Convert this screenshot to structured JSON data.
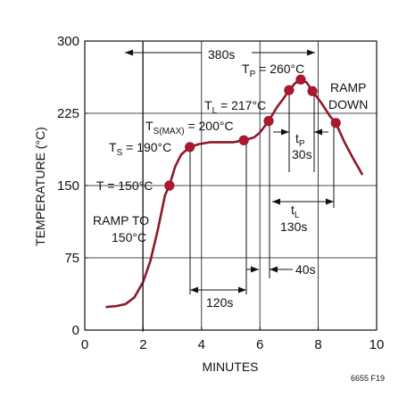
{
  "chart_data": {
    "type": "line",
    "xlabel": "MINUTES",
    "ylabel": "TEMPERATURE (°C)",
    "xlim": [
      0,
      10
    ],
    "ylim": [
      0,
      300
    ],
    "x_ticks": [
      0,
      2,
      4,
      6,
      8,
      10
    ],
    "y_ticks": [
      0,
      75,
      150,
      225,
      300
    ],
    "grid": true,
    "colors": {
      "curve": "#8b1a2b",
      "point": "#b0162f",
      "line": "#111111"
    },
    "series": [
      {
        "x": [
          0.75,
          1.1,
          1.4,
          1.7,
          2.0,
          2.25,
          2.5,
          2.75,
          2.9,
          3.1,
          3.3,
          3.6,
          3.9,
          4.3,
          4.7,
          5.1,
          5.45,
          5.8,
          6.0,
          6.3,
          6.6,
          6.8,
          7.0,
          7.2,
          7.4,
          7.6,
          7.8,
          8.1,
          8.4,
          8.6,
          8.9,
          9.2,
          9.5
        ],
        "y": [
          24,
          25,
          27,
          34,
          50,
          72,
          104,
          140,
          150,
          170,
          182,
          190,
          193,
          195,
          195,
          195,
          197,
          200,
          205,
          217,
          232,
          240,
          249,
          256,
          260,
          257,
          248,
          236,
          222,
          215,
          195,
          178,
          162
        ]
      }
    ],
    "points": [
      {
        "x": 2.9,
        "y": 150
      },
      {
        "x": 3.6,
        "y": 190
      },
      {
        "x": 5.45,
        "y": 197
      },
      {
        "x": 6.3,
        "y": 217
      },
      {
        "x": 7.0,
        "y": 249
      },
      {
        "x": 7.4,
        "y": 260
      },
      {
        "x": 7.8,
        "y": 248
      },
      {
        "x": 8.6,
        "y": 215
      }
    ],
    "annotations": {
      "total": "380s",
      "tp_main": "T",
      "tp_sub": "P",
      "tp_rest": " = 260°C",
      "ramp_down_1": "RAMP",
      "ramp_down_2": "DOWN",
      "tl_main": "T",
      "tl_sub": "L",
      "tl_rest": " = 217°C",
      "tsmax_main": "T",
      "tsmax_sub": "S(MAX)",
      "tsmax_rest": " = 200°C",
      "ts_main": "T",
      "ts_sub": "S",
      "ts_rest": " = 190°C",
      "t150": "T = 150°C",
      "ramp_to_1": "RAMP TO",
      "ramp_to_2": "150°C",
      "tp_time_main": "t",
      "tp_time_sub": "P",
      "tp_time_value": "30s",
      "tl_time_main": "t",
      "tl_time_sub": "L",
      "tl_time_value": "130s",
      "d40": "40s",
      "d120": "120s",
      "figure_id": "6655 F19"
    }
  }
}
